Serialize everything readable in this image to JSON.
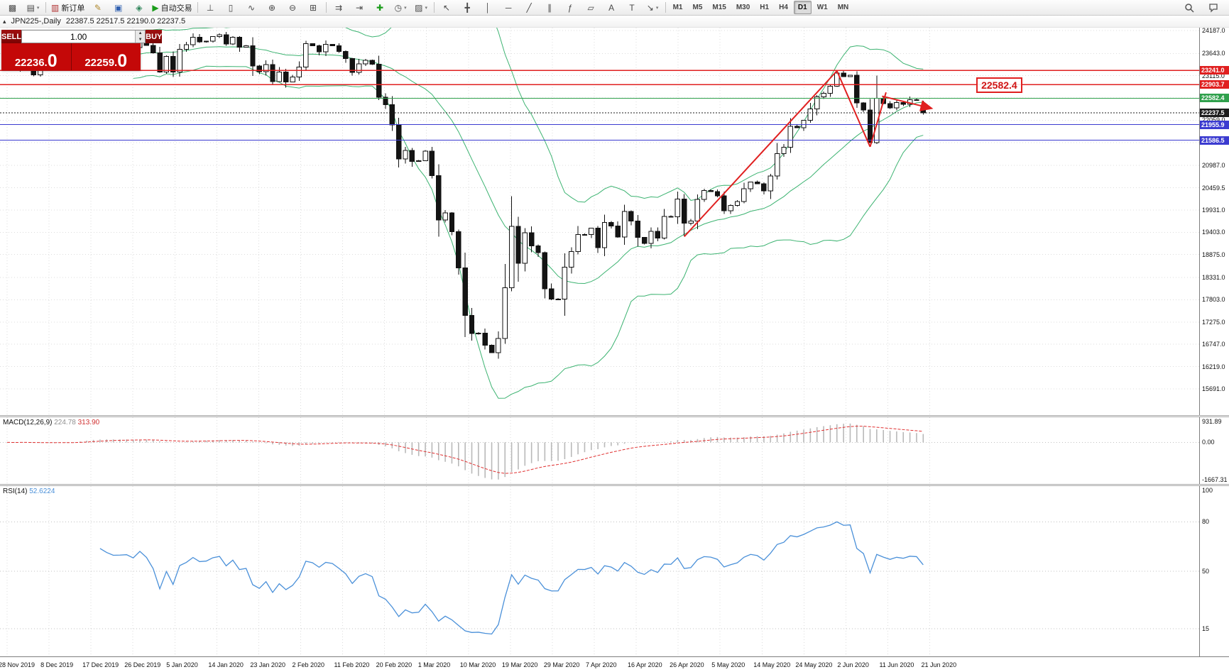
{
  "toolbar": {
    "items": [
      {
        "name": "new-chart-button",
        "glyph": "▩"
      },
      {
        "name": "profiles-button",
        "glyph": "▤",
        "dropdown": true
      },
      {
        "type": "sep"
      },
      {
        "name": "new-order-button",
        "glyph": "▥",
        "label": "新订单",
        "color": "#b03030"
      },
      {
        "name": "metaeditor-button",
        "glyph": "✎",
        "color": "#b08a30"
      },
      {
        "name": "terminal-button",
        "glyph": "▣",
        "color": "#3060b0"
      },
      {
        "name": "navigator-button",
        "glyph": "◈",
        "color": "#2f855a"
      },
      {
        "name": "autotrading-button",
        "glyph": "▶",
        "label": "自动交易",
        "color": "#1a9c1a"
      },
      {
        "type": "sep"
      },
      {
        "name": "bar-chart-button",
        "glyph": "⊥"
      },
      {
        "name": "candlestick-chart-button",
        "glyph": "▯"
      },
      {
        "name": "line-chart-button",
        "glyph": "∿"
      },
      {
        "name": "zoom-in-button",
        "glyph": "⊕"
      },
      {
        "name": "zoom-out-button",
        "glyph": "⊖"
      },
      {
        "name": "tile-windows-button",
        "glyph": "⊞"
      },
      {
        "type": "sep"
      },
      {
        "name": "auto-scroll-button",
        "glyph": "⇉"
      },
      {
        "name": "chart-shift-button",
        "glyph": "⇥"
      },
      {
        "name": "indicators-button",
        "glyph": "✚",
        "color": "#1a9c1a"
      },
      {
        "name": "periods-button",
        "glyph": "◷",
        "dropdown": true
      },
      {
        "name": "templates-button",
        "glyph": "▨",
        "dropdown": true
      },
      {
        "type": "sep"
      },
      {
        "name": "cursor-button",
        "glyph": "↖"
      },
      {
        "name": "crosshair-button",
        "glyph": "╋"
      },
      {
        "name": "vertical-line-button",
        "glyph": "│"
      },
      {
        "name": "horizontal-line-button",
        "glyph": "─"
      },
      {
        "name": "trendline-button",
        "glyph": "╱"
      },
      {
        "name": "channel-button",
        "glyph": "∥"
      },
      {
        "name": "fibonacci-button",
        "glyph": "ƒ"
      },
      {
        "name": "shapes-button",
        "glyph": "▱"
      },
      {
        "name": "text-button",
        "glyph": "A"
      },
      {
        "name": "label-button",
        "glyph": "T"
      },
      {
        "name": "arrows-button",
        "glyph": "↘",
        "dropdown": true
      },
      {
        "type": "sep"
      }
    ],
    "timeframes": [
      "M1",
      "M5",
      "M15",
      "M30",
      "H1",
      "H4",
      "D1",
      "W1",
      "MN"
    ],
    "active_timeframe": "D1"
  },
  "chart_window": {
    "collapse_arrow": "▴",
    "title": "JPN225-,Daily",
    "ohlc_text": "22387.5 22517.5 22190.0 22237.5"
  },
  "trade_panel": {
    "sell_label": "SELL",
    "buy_label": "BUY",
    "volume_value": "1.00",
    "spin_up": "▲",
    "spin_down": "▼",
    "sell_price_main": "22236.",
    "sell_price_big": "0",
    "buy_price_main": "22259.",
    "buy_price_big": "0"
  },
  "macd_panel": {
    "label": "MACD(12,26,9)",
    "value_main": "224.78",
    "value_signal": "313.90",
    "scale_top": "931.89",
    "scale_zero": "0.00",
    "scale_bottom": "-1667.31"
  },
  "rsi_panel": {
    "label": "RSI(14)",
    "value": "52.6224",
    "scale": [
      "100",
      "80",
      "50",
      "15"
    ],
    "levels": [
      80,
      50,
      15
    ]
  },
  "chart_data": {
    "type": "candlestick",
    "symbol": "JPN225-",
    "period": "Daily",
    "y_max": 24187.0,
    "y_min": 15691.0,
    "y_ticks": [
      "24187.0",
      "23643.0",
      "23115.0",
      "22587.0",
      "22059.0",
      "21531.0",
      "20987.0",
      "20459.5",
      "19931.0",
      "19403.0",
      "18875.0",
      "18331.0",
      "17803.0",
      "17275.0",
      "16747.0",
      "16219.0",
      "15691.0"
    ],
    "x_labels": [
      "28 Nov 2019",
      "8 Dec 2019",
      "17 Dec 2019",
      "26 Dec 2019",
      "5 Jan 2020",
      "14 Jan 2020",
      "23 Jan 2020",
      "2 Feb 2020",
      "11 Feb 2020",
      "20 Feb 2020",
      "1 Mar 2020",
      "10 Mar 2020",
      "19 Mar 2020",
      "29 Mar 2020",
      "7 Apr 2020",
      "16 Apr 2020",
      "26 Apr 2020",
      "5 May 2020",
      "14 May 2020",
      "24 May 2020",
      "2 Jun 2020",
      "11 Jun 2020",
      "21 Jun 2020"
    ],
    "first_open": 23480,
    "closes": [
      23410,
      23290,
      23530,
      23380,
      23135,
      23300,
      23354,
      23430,
      23410,
      23391,
      23424,
      23950,
      23952,
      24066,
      23934,
      23864,
      23816,
      23821,
      23830,
      23782,
      23924,
      23837,
      23656,
      23204,
      23575,
      23204,
      23739,
      23850,
      24025,
      23916,
      23933,
      24041,
      24083,
      23864,
      24031,
      23795,
      23827,
      23343,
      23215,
      23379,
      22977,
      23205,
      22971,
      23084,
      23320,
      23873,
      23827,
      23685,
      23861,
      23827,
      23687,
      23523,
      23193,
      23400,
      23479,
      23386,
      22605,
      22426,
      21948,
      21143,
      21344,
      21082,
      21100,
      21329,
      20750,
      19699,
      19867,
      19416,
      18560,
      17431,
      17002,
      17012,
      16727,
      16553,
      16888,
      18092,
      19547,
      18665,
      19389,
      19085,
      18917,
      18065,
      17819,
      17820,
      18576,
      18950,
      19353,
      19346,
      19499,
      19043,
      19639,
      19550,
      19290,
      19897,
      19669,
      19280,
      19138,
      19429,
      19262,
      19783,
      19771,
      20194,
      19619,
      19674,
      20179,
      20390,
      20366,
      20267,
      19914,
      20037,
      20133,
      20433,
      20595,
      20552,
      20388,
      20741,
      21271,
      21419,
      21916,
      21878,
      22062,
      22326,
      22614,
      22696,
      22864,
      23178,
      23091,
      23125,
      22473,
      22305,
      21531,
      22582,
      22456,
      22355,
      22479,
      22437,
      22549,
      22534,
      22237.5
    ],
    "last_bar": {
      "open": 22387.5,
      "high": 22517.5,
      "low": 22190.0,
      "close": 22237.5
    },
    "bollinger": {
      "period": 20,
      "deviation": 2
    },
    "price_lines": [
      {
        "label": "23241.0",
        "price": 23241.0,
        "color": "#e02020"
      },
      {
        "label": "22903.7",
        "price": 22903.7,
        "color": "#e02020"
      },
      {
        "label": "22582.4",
        "price": 22582.4,
        "color": "#2fa04c"
      },
      {
        "label": "22237.5",
        "price": 22237.5,
        "color": "#1c1c1c",
        "current": true
      },
      {
        "label": "21955.9",
        "price": 21955.9,
        "color": "#3b3bd0"
      },
      {
        "label": "21586.5",
        "price": 21586.5,
        "color": "#3b3bd0"
      }
    ],
    "trend_lines": [
      {
        "i1": 102,
        "p1": 19300,
        "i2": 125,
        "p2": 23230
      },
      {
        "i1": 125,
        "p1": 23230,
        "i2": 130,
        "p2": 21430
      },
      {
        "i1": 130,
        "p1": 21430,
        "i2": 132.4,
        "p2": 22720
      },
      {
        "i1": 131.8,
        "p1": 22630,
        "i2": 139.3,
        "p2": 22340,
        "arrow": true
      }
    ],
    "annotation": {
      "text": "22582.4",
      "i": 146,
      "p": 22890
    },
    "colors": {
      "bull": "#ffffff",
      "bear": "#141414",
      "bollinger": "#3cb371",
      "grid": "#dcdcdc",
      "trend": "#e02020",
      "macd_hist": "#b9b9b9",
      "macd_signal": "#e03030",
      "rsi_line": "#4a90d9"
    }
  }
}
